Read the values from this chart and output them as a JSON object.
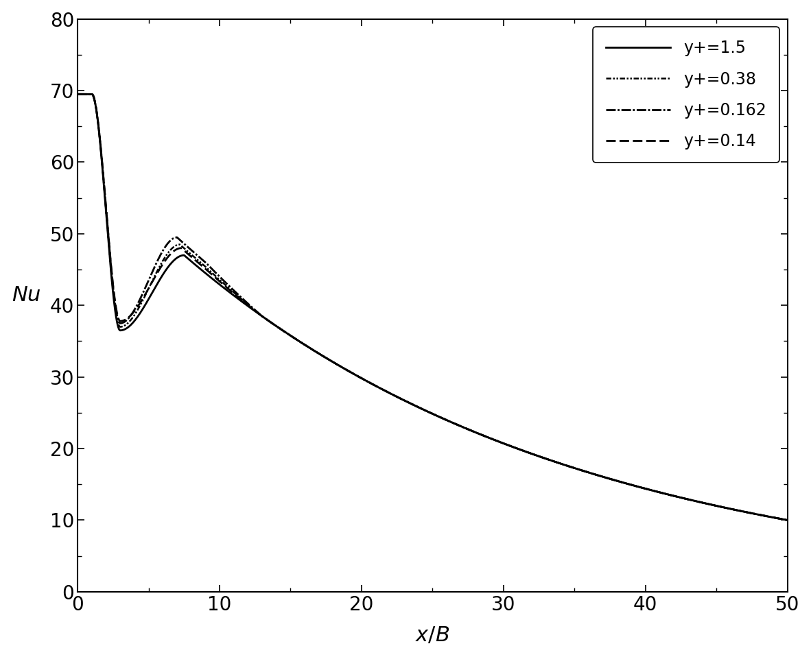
{
  "title": "",
  "xlabel": "$x/B$",
  "ylabel": "$Nu$",
  "xlim": [
    0,
    50
  ],
  "ylim": [
    0,
    80
  ],
  "xticks": [
    0,
    10,
    20,
    30,
    40,
    50
  ],
  "yticks": [
    0,
    10,
    20,
    30,
    40,
    50,
    60,
    70,
    80
  ],
  "legend_labels": [
    "y+=1.5",
    "y+=0.38",
    "y+=0.162",
    "y+=0.14"
  ],
  "background_color": "#ffffff",
  "font_size": 20,
  "legend_font_size": 17
}
